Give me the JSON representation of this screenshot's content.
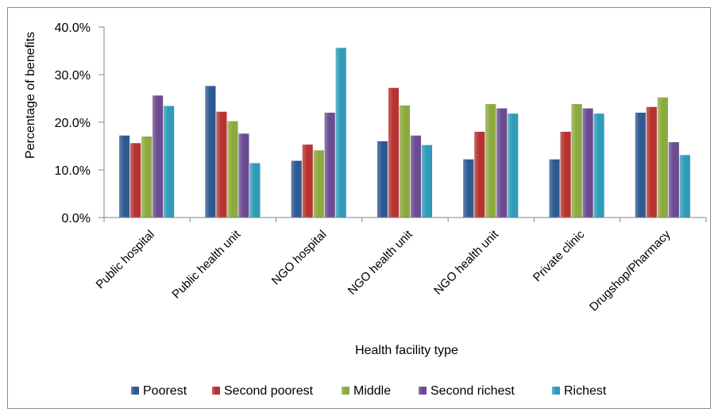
{
  "chart_data": {
    "type": "bar",
    "title": "",
    "xlabel": "Health facility type",
    "ylabel": "Percentage of benefits",
    "ylim": [
      0,
      40
    ],
    "yticks": [
      "0.0%",
      "10.0%",
      "20.0%",
      "30.0%",
      "40.0%"
    ],
    "grid": false,
    "legend_position": "bottom",
    "categories": [
      "Public hospital",
      "Public health unit",
      "NGO hospital",
      "NGO health unit",
      "NGO health unit",
      "Private clinic",
      "Drugshop/Pharmacy"
    ],
    "series": [
      {
        "name": "Poorest",
        "color": "#2e5a92",
        "values": [
          17.2,
          27.6,
          11.9,
          16.0,
          12.2,
          12.2,
          22.0
        ]
      },
      {
        "name": "Second poorest",
        "color": "#b83330",
        "values": [
          15.6,
          22.2,
          15.3,
          27.2,
          18.0,
          18.0,
          23.2
        ]
      },
      {
        "name": "Middle",
        "color": "#8daa3e",
        "values": [
          17.0,
          20.2,
          14.1,
          23.5,
          23.8,
          23.8,
          25.2
        ]
      },
      {
        "name": "Second richest",
        "color": "#6b4b92",
        "values": [
          25.6,
          17.6,
          22.0,
          17.2,
          22.9,
          22.9,
          15.8
        ]
      },
      {
        "name": "Richest",
        "color": "#2e9cb8",
        "values": [
          23.4,
          11.4,
          35.6,
          15.2,
          21.8,
          21.8,
          13.1
        ]
      }
    ]
  }
}
